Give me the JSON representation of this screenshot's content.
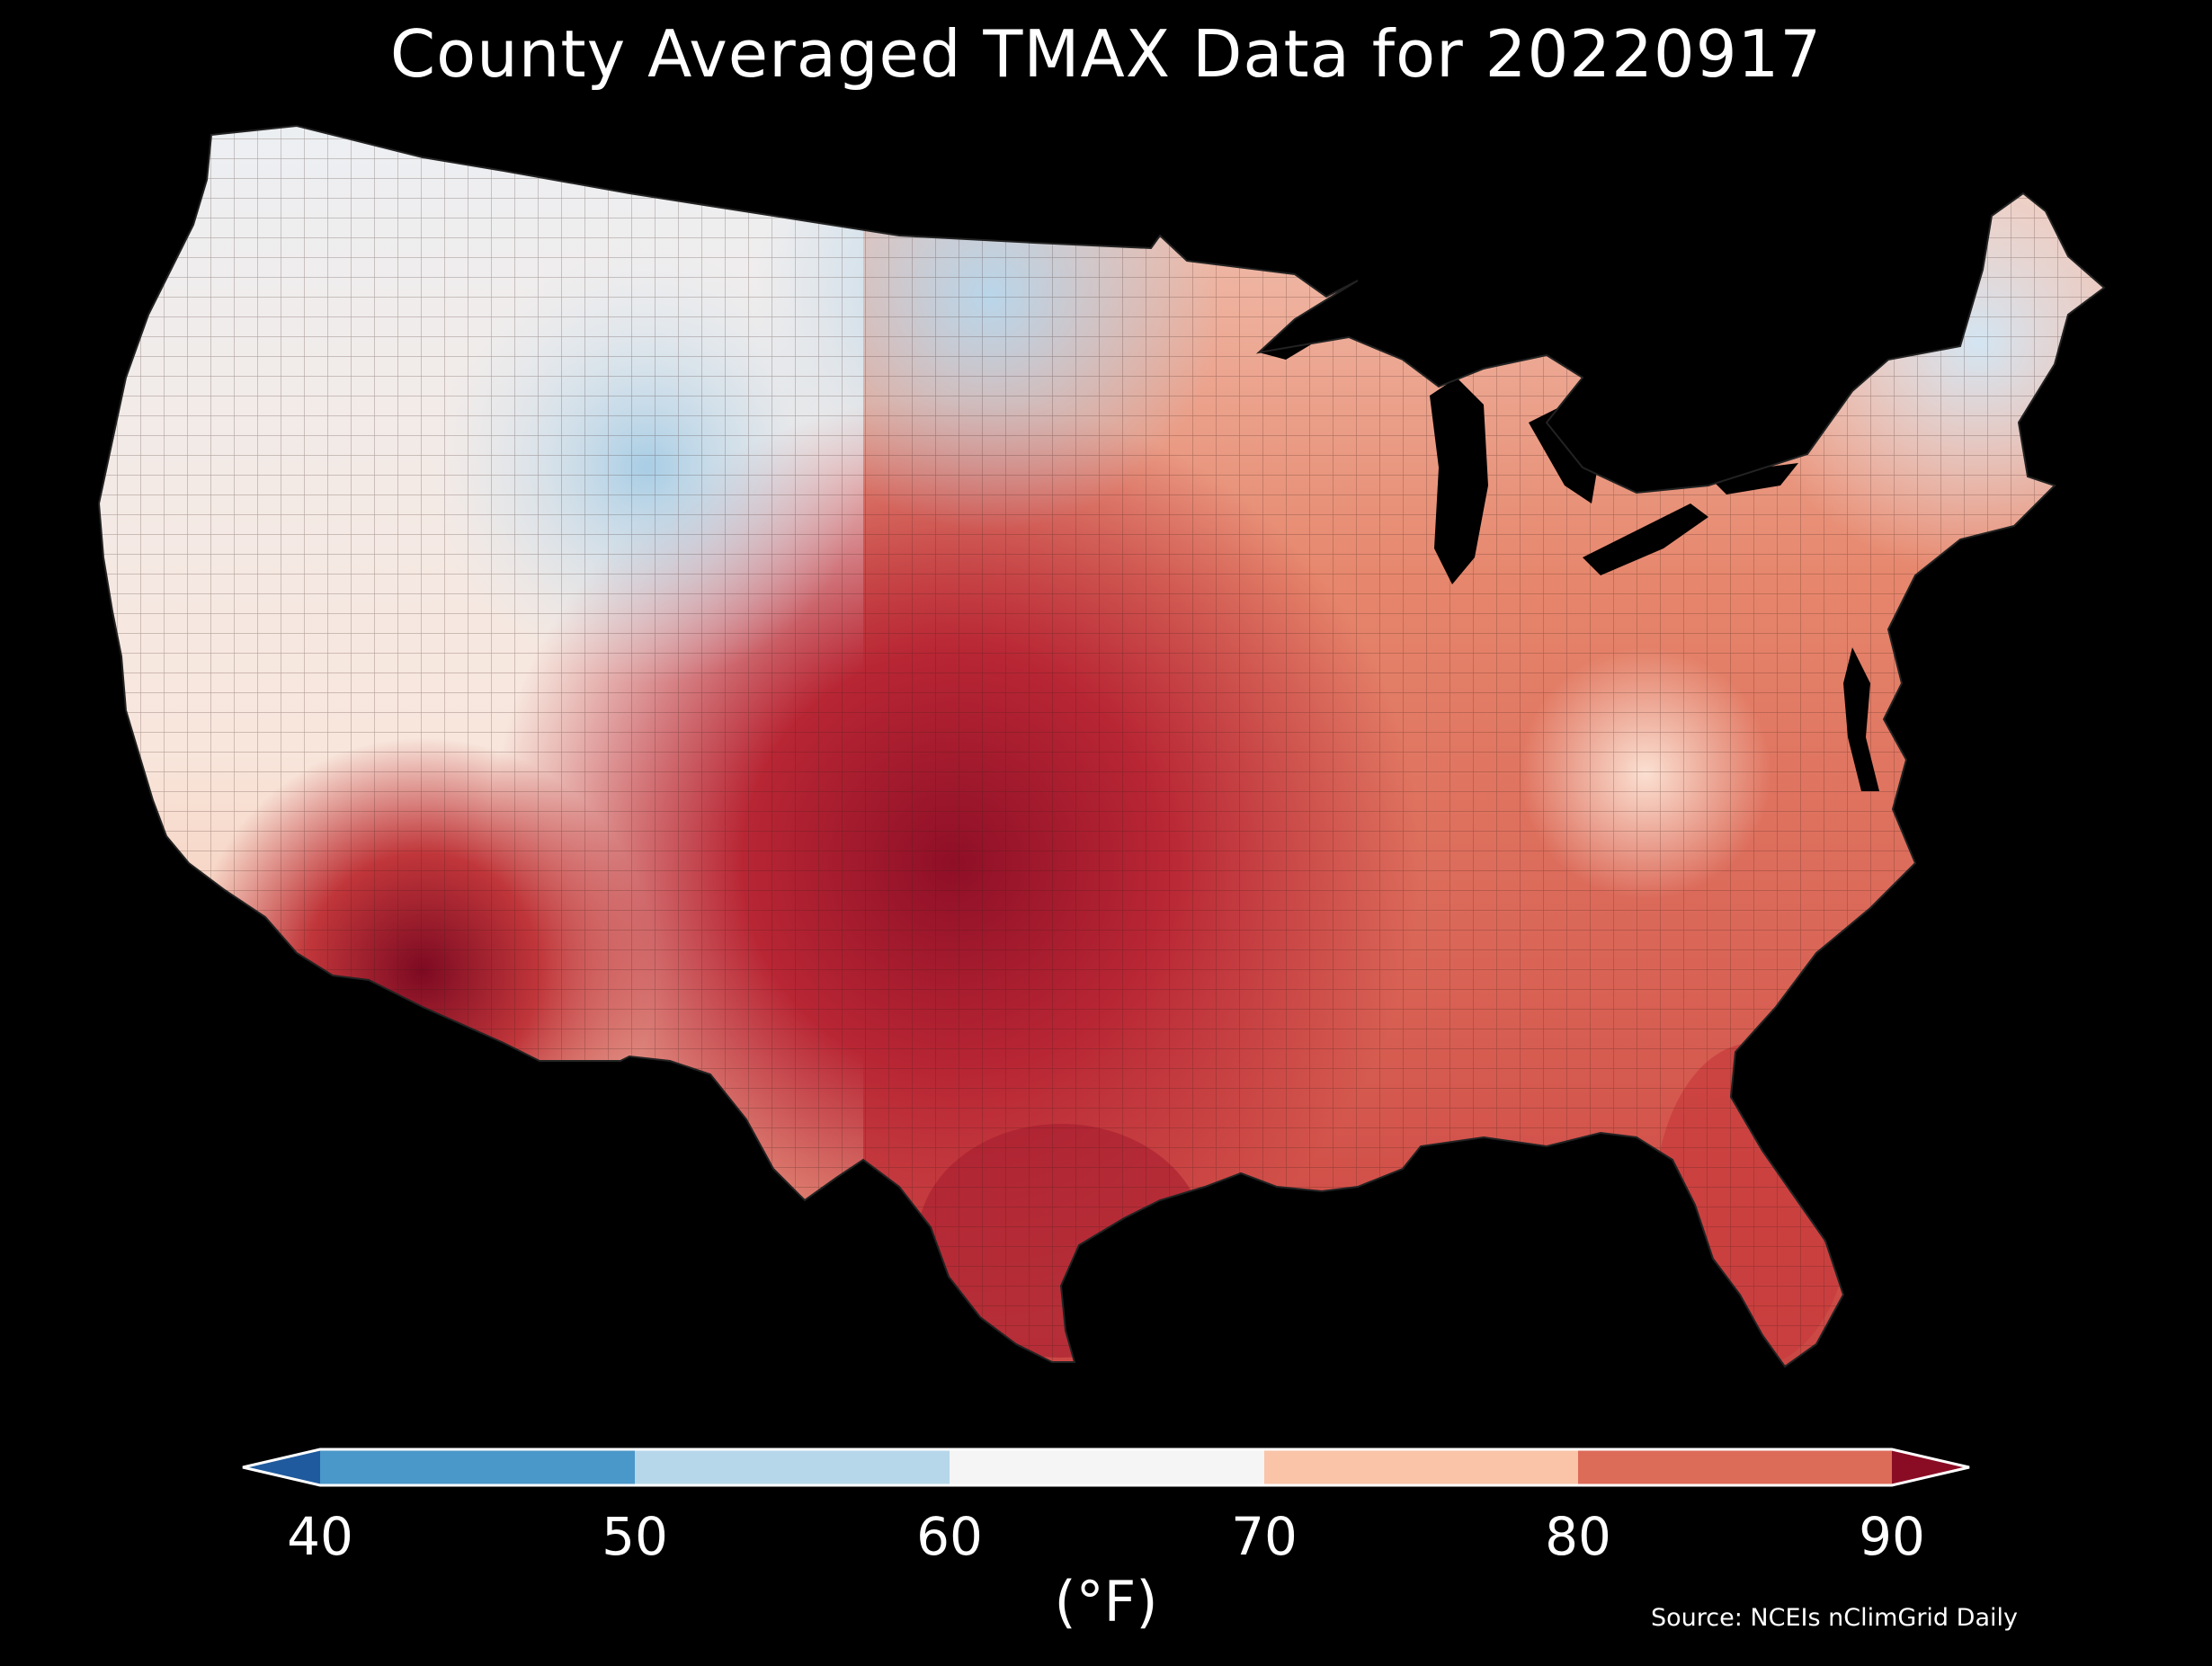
{
  "title": "County Averaged TMAX Data for 20220917",
  "source": "Source: NCEIs nClimGrid Daily",
  "colorbar": {
    "unit_label": "(°F)",
    "ticks": [
      "40",
      "50",
      "60",
      "70",
      "80",
      "90"
    ],
    "tick_values": [
      40,
      50,
      60,
      70,
      80,
      90
    ],
    "colors": {
      "under": "#1f5a9e",
      "b40_50": "#4a97c9",
      "b50_60": "#b6d7ea",
      "b60_70": "#f5f5f5",
      "b70_80": "#f9c4a8",
      "b80_90": "#dc6b58",
      "over": "#8a0c24"
    },
    "extend": "both"
  },
  "map": {
    "type": "choropleth",
    "region": "Contiguous United States",
    "units": "counties",
    "background": "#000000",
    "variable_range_F": [
      40,
      90
    ]
  }
}
